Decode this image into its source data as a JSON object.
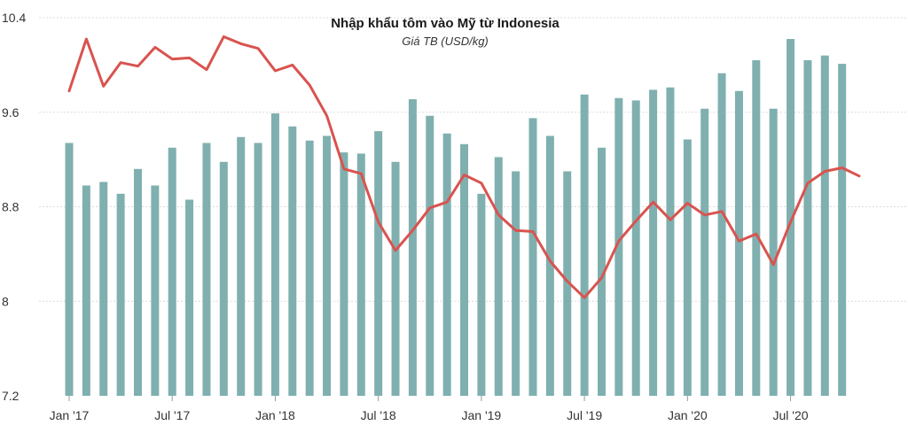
{
  "chart_data": {
    "type": "bar",
    "title": "Nhập khẩu tôm vào Mỹ từ Indonesia",
    "subtitle": "Giá TB (USD/kg)",
    "xlabel": "",
    "ylabel": "",
    "ylim": [
      7.2,
      10.4
    ],
    "yticks": [
      "10.4",
      "9.6",
      "8.8",
      "8",
      "7.2"
    ],
    "ytick_values": [
      10.4,
      9.6,
      8.8,
      8.0,
      7.2
    ],
    "xtick_labels": [
      {
        "index": 0,
        "label": "Jan '17"
      },
      {
        "index": 6,
        "label": "Jul '17"
      },
      {
        "index": 12,
        "label": "Jan '18"
      },
      {
        "index": 18,
        "label": "Jul '18"
      },
      {
        "index": 24,
        "label": "Jan '19"
      },
      {
        "index": 30,
        "label": "Jul '19"
      },
      {
        "index": 36,
        "label": "Jan '20"
      },
      {
        "index": 42,
        "label": "Jul '20"
      }
    ],
    "colors": {
      "bars": "#7FB0AF",
      "line": "#D9534F",
      "grid": "#dcdcdc"
    },
    "series": [
      {
        "name": "bar",
        "type": "bar",
        "values": [
          9.34,
          8.98,
          9.01,
          8.91,
          9.12,
          8.98,
          9.3,
          8.86,
          9.34,
          9.18,
          9.39,
          9.34,
          9.59,
          9.48,
          9.36,
          9.4,
          9.26,
          9.25,
          9.44,
          9.18,
          9.71,
          9.57,
          9.42,
          9.33,
          8.91,
          9.22,
          9.1,
          9.55,
          9.4,
          9.1,
          9.75,
          9.3,
          9.72,
          9.7,
          9.79,
          9.81,
          9.37,
          9.63,
          9.93,
          9.78,
          10.04,
          9.63,
          10.22,
          10.04,
          10.08,
          10.01
        ]
      },
      {
        "name": "line",
        "type": "line",
        "values": [
          9.78,
          10.22,
          9.82,
          10.02,
          9.99,
          10.15,
          10.05,
          10.06,
          9.96,
          10.24,
          10.18,
          10.14,
          9.95,
          10.0,
          9.83,
          9.57,
          9.12,
          9.08,
          8.67,
          8.43,
          8.6,
          8.79,
          8.84,
          9.07,
          9.0,
          8.73,
          8.6,
          8.59,
          8.34,
          8.17,
          8.03,
          8.2,
          8.51,
          8.68,
          8.84,
          8.69,
          8.83,
          8.73,
          8.76,
          8.51,
          8.57,
          8.31,
          8.67,
          9.0,
          9.1,
          9.13,
          9.06
        ]
      }
    ]
  }
}
